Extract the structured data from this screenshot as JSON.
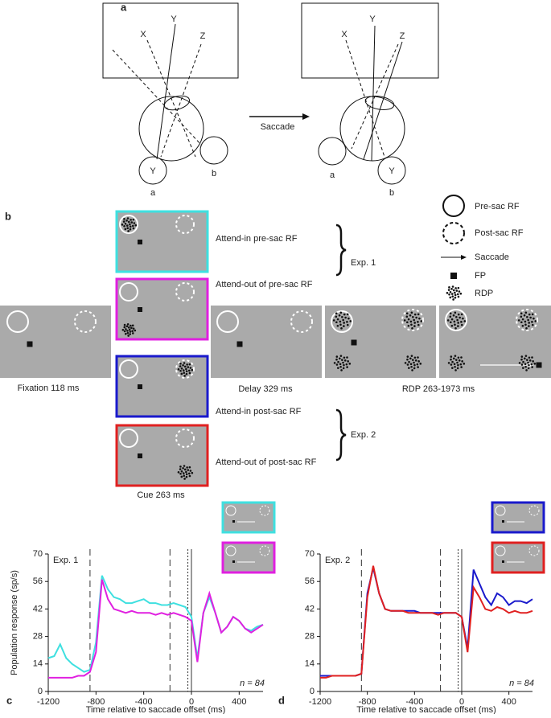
{
  "panel_a": {
    "label": "a",
    "arrow_label": "Saccade",
    "before": {
      "x": "X",
      "y": "Y",
      "z": "Z",
      "target": "Y",
      "a": "a",
      "b": "b"
    },
    "after": {
      "x": "X",
      "y": "Y",
      "z": "Z",
      "target": "Y",
      "a": "a",
      "b": "b"
    }
  },
  "panel_b": {
    "label": "b",
    "legend": [
      "Pre-sac RF",
      "Post-sac RF",
      "Saccade",
      "FP",
      "RDP"
    ],
    "conditions": [
      "Attend-in pre-sac RF",
      "Attend-out of pre-sac RF",
      "Attend-in post-sac RF",
      "Attend-out of post-sac RF"
    ],
    "experiments": [
      "Exp. 1",
      "Exp. 2"
    ],
    "stages": [
      "Fixation 118 ms",
      "Cue 263 ms",
      "Delay 329 ms",
      "RDP 263-1973 ms"
    ]
  },
  "chart_data": [
    {
      "type": "line",
      "panel": "c",
      "ylabel": "Population response (sp/s)",
      "xlabel": "Time relative to saccade offset (ms)",
      "annotations": {
        "exp": "Exp. 1",
        "n": "n = 84"
      },
      "xlim": [
        -1200,
        600
      ],
      "ylim": [
        0,
        70
      ],
      "xticks": [
        -1200,
        -800,
        -400,
        0,
        400
      ],
      "yticks": [
        0,
        14,
        28,
        42,
        56,
        70
      ],
      "event_lines": [
        {
          "value": -850,
          "style": "dashed"
        },
        {
          "value": -180,
          "style": "dashed"
        },
        {
          "value": -30,
          "style": "dotted"
        },
        {
          "value": 0,
          "style": "solid"
        }
      ],
      "x": [
        -1200,
        -1150,
        -1100,
        -1050,
        -1000,
        -950,
        -900,
        -850,
        -800,
        -750,
        -700,
        -650,
        -600,
        -550,
        -500,
        -450,
        -400,
        -350,
        -300,
        -250,
        -200,
        -150,
        -100,
        -50,
        0,
        50,
        100,
        150,
        200,
        250,
        300,
        350,
        400,
        450,
        500,
        550,
        600
      ],
      "series": [
        {
          "color": "#3fe0e0",
          "values": [
            17,
            18,
            24,
            17,
            14,
            12,
            10,
            11,
            25,
            59,
            52,
            48,
            47,
            45,
            45,
            46,
            47,
            45,
            45,
            44,
            44,
            45,
            44,
            43,
            38,
            17,
            40,
            48,
            40,
            30,
            33,
            38,
            36,
            32,
            31,
            33,
            34
          ]
        },
        {
          "color": "#e020e0",
          "values": [
            7,
            7,
            7,
            7,
            7,
            8,
            8,
            10,
            20,
            57,
            47,
            42,
            41,
            40,
            41,
            40,
            40,
            40,
            39,
            40,
            39,
            40,
            39,
            38,
            36,
            15,
            40,
            50,
            40,
            30,
            33,
            38,
            36,
            32,
            30,
            32,
            34
          ]
        }
      ]
    },
    {
      "type": "line",
      "panel": "d",
      "xlabel": "Time relative to saccade offset (ms)",
      "annotations": {
        "exp": "Exp. 2",
        "n": "n = 84"
      },
      "xlim": [
        -1200,
        600
      ],
      "ylim": [
        0,
        70
      ],
      "xticks": [
        -1200,
        -800,
        -400,
        0,
        400
      ],
      "yticks": [
        0,
        14,
        28,
        42,
        56,
        70
      ],
      "event_lines": [
        {
          "value": -850,
          "style": "dashed"
        },
        {
          "value": -180,
          "style": "dashed"
        },
        {
          "value": -30,
          "style": "dotted"
        },
        {
          "value": 0,
          "style": "solid"
        }
      ],
      "x": [
        -1200,
        -1150,
        -1100,
        -1050,
        -1000,
        -950,
        -900,
        -850,
        -800,
        -750,
        -700,
        -650,
        -600,
        -550,
        -500,
        -450,
        -400,
        -350,
        -300,
        -250,
        -200,
        -150,
        -100,
        -50,
        0,
        50,
        100,
        150,
        200,
        250,
        300,
        350,
        400,
        450,
        500,
        550,
        600
      ],
      "series": [
        {
          "color": "#1a1acc",
          "values": [
            8,
            8,
            8,
            8,
            8,
            8,
            8,
            9,
            50,
            63,
            50,
            42,
            41,
            41,
            41,
            41,
            41,
            40,
            40,
            40,
            40,
            40,
            40,
            40,
            38,
            22,
            62,
            55,
            48,
            44,
            50,
            48,
            44,
            46,
            46,
            45,
            47
          ]
        },
        {
          "color": "#e02020",
          "values": [
            7,
            7,
            8,
            8,
            8,
            8,
            8,
            9,
            48,
            64,
            50,
            42,
            41,
            41,
            41,
            40,
            40,
            40,
            40,
            40,
            39,
            40,
            40,
            40,
            38,
            20,
            53,
            48,
            42,
            41,
            43,
            42,
            40,
            41,
            40,
            40,
            41
          ]
        }
      ]
    }
  ]
}
